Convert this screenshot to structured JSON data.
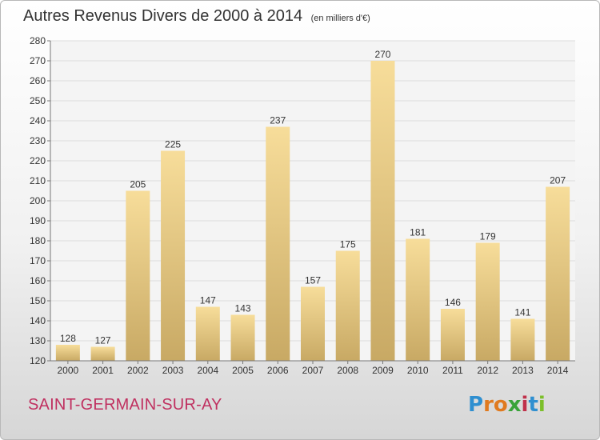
{
  "title": "Autres Revenus Divers de 2000 à 2014",
  "unit_note": "(en milliers d'€)",
  "commune": "SAINT-GERMAIN-SUR-AY",
  "logo": {
    "letters": [
      "P",
      "r",
      "o",
      "x",
      "i",
      "t",
      "i"
    ],
    "colors": [
      "#2f8fd0",
      "#e07a1f",
      "#e07a1f",
      "#3aa33a",
      "#c0304a",
      "#2f8fd0",
      "#7cbf2a"
    ]
  },
  "chart_data": {
    "type": "bar",
    "categories": [
      "2000",
      "2001",
      "2002",
      "2003",
      "2004",
      "2005",
      "2006",
      "2007",
      "2008",
      "2009",
      "2010",
      "2011",
      "2012",
      "2013",
      "2014"
    ],
    "values": [
      128,
      127,
      205,
      225,
      147,
      143,
      237,
      157,
      175,
      270,
      181,
      146,
      179,
      141,
      207
    ],
    "ylim": [
      120,
      280
    ],
    "yticks": [
      120,
      130,
      140,
      150,
      160,
      170,
      180,
      190,
      200,
      210,
      220,
      230,
      240,
      250,
      260,
      270,
      280
    ],
    "grid": true,
    "bar_color": "#e8c878"
  }
}
